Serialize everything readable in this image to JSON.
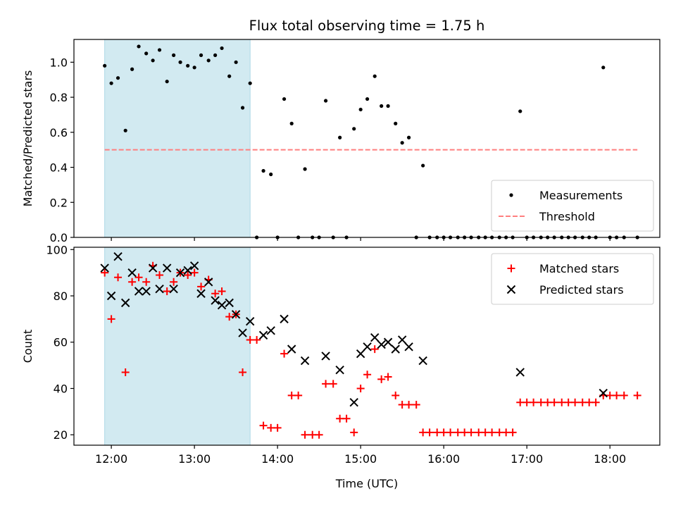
{
  "title": "Flux total observing time = 1.75 h",
  "colors": {
    "highlight": "#add8e6",
    "measurement": "#000000",
    "threshold": "#ff7f7f",
    "matched": "#ff0000",
    "predicted": "#000000"
  },
  "chart_data": [
    {
      "type": "scatter",
      "title": "Flux total observing time = 1.75 h",
      "xlabel": "",
      "ylabel": "Matched/Predicted stars",
      "x_unit": "hours UTC",
      "xlim": [
        11.55,
        18.6
      ],
      "ylim": [
        0,
        1.13
      ],
      "yticks": [
        "0.0",
        "0.2",
        "0.4",
        "0.6",
        "0.8",
        "1.0"
      ],
      "ytick_values": [
        0,
        0.2,
        0.4,
        0.6,
        0.8,
        1.0
      ],
      "xtick_values": [
        12,
        13,
        14,
        15,
        16,
        17,
        18
      ],
      "shaded_span": [
        11.92,
        13.67
      ],
      "legend_position": "lower right",
      "threshold": {
        "name": "Threshold",
        "y": 0.5,
        "x": [
          11.92,
          18.33
        ],
        "style": "dashed"
      },
      "series": [
        {
          "name": "Measurements",
          "marker": "dot",
          "points": [
            [
              11.92,
              0.98
            ],
            [
              12.0,
              0.88
            ],
            [
              12.08,
              0.91
            ],
            [
              12.17,
              0.61
            ],
            [
              12.25,
              0.96
            ],
            [
              12.33,
              1.09
            ],
            [
              12.42,
              1.05
            ],
            [
              12.5,
              1.01
            ],
            [
              12.58,
              1.07
            ],
            [
              12.67,
              0.89
            ],
            [
              12.75,
              1.04
            ],
            [
              12.83,
              1.0
            ],
            [
              12.92,
              0.98
            ],
            [
              13.0,
              0.97
            ],
            [
              13.08,
              1.04
            ],
            [
              13.17,
              1.01
            ],
            [
              13.25,
              1.04
            ],
            [
              13.33,
              1.08
            ],
            [
              13.42,
              0.92
            ],
            [
              13.5,
              1.0
            ],
            [
              13.58,
              0.74
            ],
            [
              13.67,
              0.88
            ],
            [
              13.75,
              0.0
            ],
            [
              13.83,
              0.38
            ],
            [
              13.92,
              0.36
            ],
            [
              14.0,
              0.0
            ],
            [
              14.08,
              0.79
            ],
            [
              14.17,
              0.65
            ],
            [
              14.25,
              0.0
            ],
            [
              14.33,
              0.39
            ],
            [
              14.42,
              0.0
            ],
            [
              14.5,
              0.0
            ],
            [
              14.58,
              0.78
            ],
            [
              14.67,
              0.0
            ],
            [
              14.75,
              0.57
            ],
            [
              14.83,
              0.0
            ],
            [
              14.92,
              0.62
            ],
            [
              15.0,
              0.73
            ],
            [
              15.08,
              0.79
            ],
            [
              15.17,
              0.92
            ],
            [
              15.25,
              0.75
            ],
            [
              15.33,
              0.75
            ],
            [
              15.42,
              0.65
            ],
            [
              15.5,
              0.54
            ],
            [
              15.58,
              0.57
            ],
            [
              15.67,
              0.0
            ],
            [
              15.75,
              0.41
            ],
            [
              15.83,
              0.0
            ],
            [
              15.92,
              0.0
            ],
            [
              16.0,
              0.0
            ],
            [
              16.08,
              0.0
            ],
            [
              16.17,
              0.0
            ],
            [
              16.25,
              0.0
            ],
            [
              16.33,
              0.0
            ],
            [
              16.42,
              0.0
            ],
            [
              16.5,
              0.0
            ],
            [
              16.58,
              0.0
            ],
            [
              16.67,
              0.0
            ],
            [
              16.75,
              0.0
            ],
            [
              16.83,
              0.0
            ],
            [
              16.92,
              0.72
            ],
            [
              17.0,
              0.0
            ],
            [
              17.08,
              0.0
            ],
            [
              17.17,
              0.0
            ],
            [
              17.25,
              0.0
            ],
            [
              17.33,
              0.0
            ],
            [
              17.42,
              0.0
            ],
            [
              17.5,
              0.0
            ],
            [
              17.58,
              0.0
            ],
            [
              17.67,
              0.0
            ],
            [
              17.75,
              0.0
            ],
            [
              17.83,
              0.0
            ],
            [
              17.92,
              0.97
            ],
            [
              18.0,
              0.0
            ],
            [
              18.08,
              0.0
            ],
            [
              18.17,
              0.0
            ],
            [
              18.33,
              0.0
            ]
          ]
        }
      ]
    },
    {
      "type": "scatter",
      "xlabel": "Time (UTC)",
      "ylabel": "Count",
      "x_unit": "hours UTC",
      "xlim": [
        11.55,
        18.6
      ],
      "ylim": [
        15.5,
        101
      ],
      "yticks": [
        "20",
        "40",
        "60",
        "80",
        "100"
      ],
      "ytick_values": [
        20,
        40,
        60,
        80,
        100
      ],
      "xticks": [
        "12:00",
        "13:00",
        "14:00",
        "15:00",
        "16:00",
        "17:00",
        "18:00"
      ],
      "xtick_values": [
        12,
        13,
        14,
        15,
        16,
        17,
        18
      ],
      "shaded_span": [
        11.92,
        13.67
      ],
      "legend_position": "upper right",
      "series": [
        {
          "name": "Matched stars",
          "marker": "plus",
          "points": [
            [
              11.92,
              90
            ],
            [
              12.0,
              70
            ],
            [
              12.08,
              88
            ],
            [
              12.17,
              47
            ],
            [
              12.25,
              86
            ],
            [
              12.33,
              88
            ],
            [
              12.42,
              86
            ],
            [
              12.5,
              93
            ],
            [
              12.58,
              89
            ],
            [
              12.67,
              82
            ],
            [
              12.75,
              86
            ],
            [
              12.83,
              90
            ],
            [
              12.92,
              89
            ],
            [
              13.0,
              90
            ],
            [
              13.08,
              84
            ],
            [
              13.17,
              87
            ],
            [
              13.25,
              81
            ],
            [
              13.33,
              82
            ],
            [
              13.42,
              71
            ],
            [
              13.5,
              72
            ],
            [
              13.58,
              47
            ],
            [
              13.67,
              61
            ],
            [
              13.75,
              61
            ],
            [
              13.83,
              24
            ],
            [
              13.92,
              23
            ],
            [
              14.0,
              23
            ],
            [
              14.08,
              55
            ],
            [
              14.17,
              37
            ],
            [
              14.25,
              37
            ],
            [
              14.33,
              20
            ],
            [
              14.42,
              20
            ],
            [
              14.5,
              20
            ],
            [
              14.58,
              42
            ],
            [
              14.67,
              42
            ],
            [
              14.75,
              27
            ],
            [
              14.83,
              27
            ],
            [
              14.92,
              21
            ],
            [
              15.0,
              40
            ],
            [
              15.08,
              46
            ],
            [
              15.17,
              57
            ],
            [
              15.25,
              44
            ],
            [
              15.33,
              45
            ],
            [
              15.42,
              37
            ],
            [
              15.5,
              33
            ],
            [
              15.58,
              33
            ],
            [
              15.67,
              33
            ],
            [
              15.75,
              21
            ],
            [
              15.83,
              21
            ],
            [
              15.92,
              21
            ],
            [
              16.0,
              21
            ],
            [
              16.08,
              21
            ],
            [
              16.17,
              21
            ],
            [
              16.25,
              21
            ],
            [
              16.33,
              21
            ],
            [
              16.42,
              21
            ],
            [
              16.5,
              21
            ],
            [
              16.58,
              21
            ],
            [
              16.67,
              21
            ],
            [
              16.75,
              21
            ],
            [
              16.83,
              21
            ],
            [
              16.92,
              34
            ],
            [
              17.0,
              34
            ],
            [
              17.08,
              34
            ],
            [
              17.17,
              34
            ],
            [
              17.25,
              34
            ],
            [
              17.33,
              34
            ],
            [
              17.42,
              34
            ],
            [
              17.5,
              34
            ],
            [
              17.58,
              34
            ],
            [
              17.67,
              34
            ],
            [
              17.75,
              34
            ],
            [
              17.83,
              34
            ],
            [
              17.92,
              37
            ],
            [
              18.0,
              37
            ],
            [
              18.08,
              37
            ],
            [
              18.17,
              37
            ],
            [
              18.33,
              37
            ]
          ]
        },
        {
          "name": "Predicted stars",
          "marker": "x",
          "points": [
            [
              11.92,
              92
            ],
            [
              12.0,
              80
            ],
            [
              12.08,
              97
            ],
            [
              12.17,
              77
            ],
            [
              12.25,
              90
            ],
            [
              12.33,
              82
            ],
            [
              12.42,
              82
            ],
            [
              12.5,
              92
            ],
            [
              12.58,
              83
            ],
            [
              12.67,
              92
            ],
            [
              12.75,
              83
            ],
            [
              12.83,
              90
            ],
            [
              12.92,
              91
            ],
            [
              13.0,
              93
            ],
            [
              13.08,
              81
            ],
            [
              13.17,
              86
            ],
            [
              13.25,
              78
            ],
            [
              13.33,
              76
            ],
            [
              13.42,
              77
            ],
            [
              13.5,
              72
            ],
            [
              13.58,
              64
            ],
            [
              13.67,
              69
            ],
            [
              13.83,
              63
            ],
            [
              13.92,
              65
            ],
            [
              14.08,
              70
            ],
            [
              14.17,
              57
            ],
            [
              14.33,
              52
            ],
            [
              14.58,
              54
            ],
            [
              14.75,
              48
            ],
            [
              14.92,
              34
            ],
            [
              15.0,
              55
            ],
            [
              15.08,
              58
            ],
            [
              15.17,
              62
            ],
            [
              15.25,
              59
            ],
            [
              15.33,
              60
            ],
            [
              15.42,
              57
            ],
            [
              15.5,
              61
            ],
            [
              15.58,
              58
            ],
            [
              15.75,
              52
            ],
            [
              16.92,
              47
            ],
            [
              17.92,
              38
            ]
          ]
        }
      ]
    }
  ]
}
